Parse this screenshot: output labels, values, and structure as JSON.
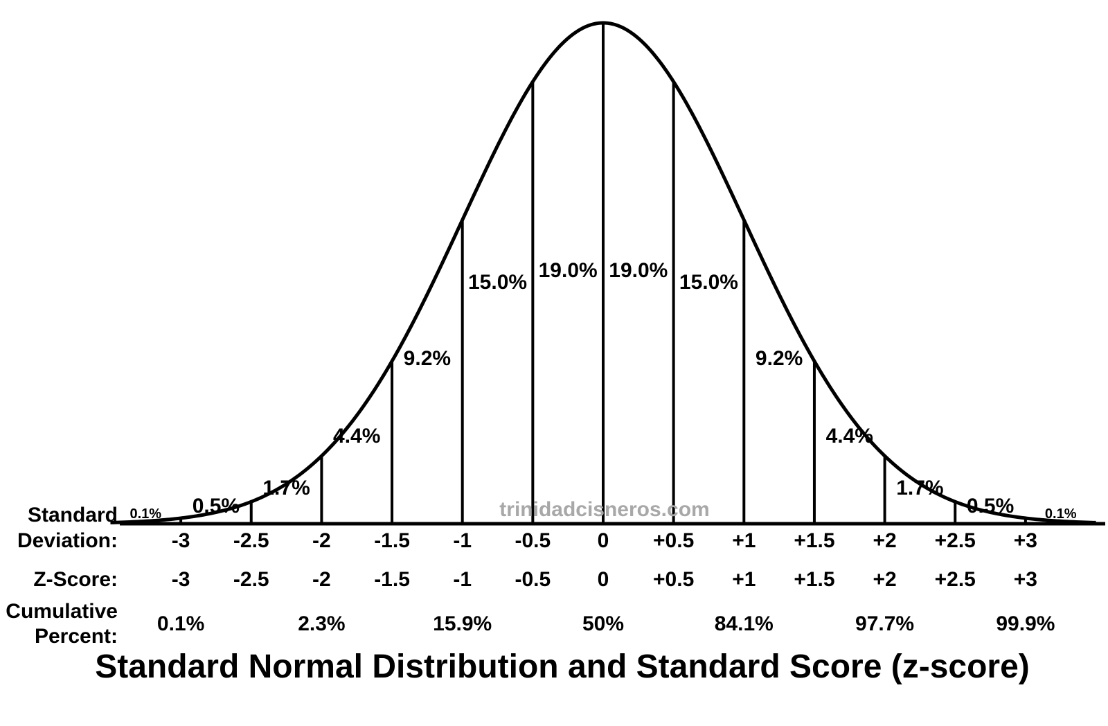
{
  "chart_data": {
    "type": "area",
    "title": "Standard Normal Distribution and Standard Score (z-score)",
    "watermark": "trinidadcisneros.com",
    "x_range": [
      -3.5,
      3.5
    ],
    "section_boundaries": [
      -3,
      -2.5,
      -2,
      -1.5,
      -1,
      -0.5,
      0,
      0.5,
      1,
      1.5,
      2,
      2.5,
      3
    ],
    "section_percents": [
      {
        "from": -3.5,
        "to": -3,
        "label": "0.1%"
      },
      {
        "from": -3,
        "to": -2.5,
        "label": "0.5%"
      },
      {
        "from": -2.5,
        "to": -2,
        "label": "1.7%"
      },
      {
        "from": -2,
        "to": -1.5,
        "label": "4.4%"
      },
      {
        "from": -1.5,
        "to": -1,
        "label": "9.2%"
      },
      {
        "from": -1,
        "to": -0.5,
        "label": "15.0%"
      },
      {
        "from": -0.5,
        "to": 0,
        "label": "19.0%"
      },
      {
        "from": 0,
        "to": 0.5,
        "label": "19.0%"
      },
      {
        "from": 0.5,
        "to": 1,
        "label": "15.0%"
      },
      {
        "from": 1,
        "to": 1.5,
        "label": "9.2%"
      },
      {
        "from": 1.5,
        "to": 2,
        "label": "4.4%"
      },
      {
        "from": 2,
        "to": 2.5,
        "label": "1.7%"
      },
      {
        "from": 2.5,
        "to": 3,
        "label": "0.5%"
      },
      {
        "from": 3,
        "to": 3.5,
        "label": "0.1%"
      }
    ],
    "rows": {
      "standard_deviation": {
        "label_lines": [
          "Standard",
          "Deviation:"
        ],
        "ticks": [
          {
            "x": -3,
            "label": "-3"
          },
          {
            "x": -2.5,
            "label": "-2.5"
          },
          {
            "x": -2,
            "label": "-2"
          },
          {
            "x": -1.5,
            "label": "-1.5"
          },
          {
            "x": -1,
            "label": "-1"
          },
          {
            "x": -0.5,
            "label": "-0.5"
          },
          {
            "x": 0,
            "label": "0"
          },
          {
            "x": 0.5,
            "label": "+0.5"
          },
          {
            "x": 1,
            "label": "+1"
          },
          {
            "x": 1.5,
            "label": "+1.5"
          },
          {
            "x": 2,
            "label": "+2"
          },
          {
            "x": 2.5,
            "label": "+2.5"
          },
          {
            "x": 3,
            "label": "+3"
          }
        ]
      },
      "z_score": {
        "label_lines": [
          "Z-Score:"
        ],
        "ticks": [
          {
            "x": -3,
            "label": "-3"
          },
          {
            "x": -2.5,
            "label": "-2.5"
          },
          {
            "x": -2,
            "label": "-2"
          },
          {
            "x": -1.5,
            "label": "-1.5"
          },
          {
            "x": -1,
            "label": "-1"
          },
          {
            "x": -0.5,
            "label": "-0.5"
          },
          {
            "x": 0,
            "label": "0"
          },
          {
            "x": 0.5,
            "label": "+0.5"
          },
          {
            "x": 1,
            "label": "+1"
          },
          {
            "x": 1.5,
            "label": "+1.5"
          },
          {
            "x": 2,
            "label": "+2"
          },
          {
            "x": 2.5,
            "label": "+2.5"
          },
          {
            "x": 3,
            "label": "+3"
          }
        ]
      },
      "cumulative_percent": {
        "label_lines": [
          "Cumulative",
          "Percent:"
        ],
        "ticks": [
          {
            "x": -3,
            "label": "0.1%"
          },
          {
            "x": -2,
            "label": "2.3%"
          },
          {
            "x": -1,
            "label": "15.9%"
          },
          {
            "x": 0,
            "label": "50%"
          },
          {
            "x": 1,
            "label": "84.1%"
          },
          {
            "x": 2,
            "label": "97.7%"
          },
          {
            "x": 3,
            "label": "99.9%"
          }
        ]
      }
    }
  }
}
